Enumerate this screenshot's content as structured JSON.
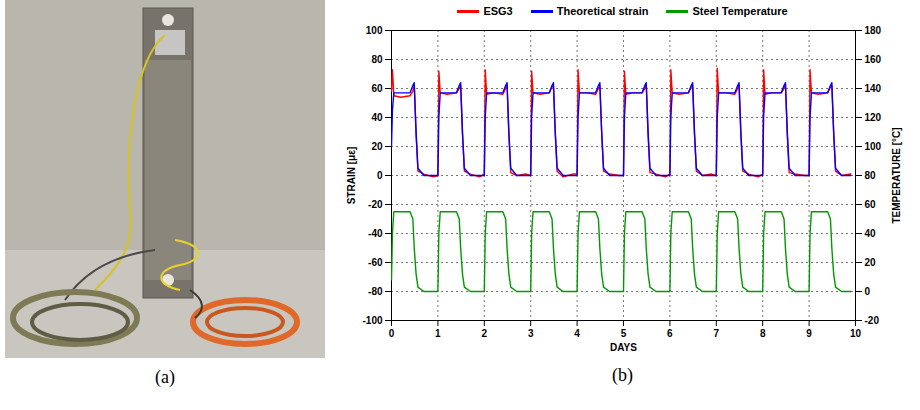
{
  "photo_panel": {
    "label": "(a)"
  },
  "chart_data": {
    "type": "line",
    "panel_label": "(b)",
    "x_label": "DAYS",
    "y_label": "STRAIN [με]",
    "y2_label": "TEMPERATURE [°C]",
    "xlim": [
      0,
      10
    ],
    "xticks": [
      0,
      1,
      2,
      3,
      4,
      5,
      6,
      7,
      8,
      9,
      10
    ],
    "ylim": [
      -100,
      100
    ],
    "yticks": [
      -100,
      -80,
      -60,
      -40,
      -20,
      0,
      20,
      40,
      60,
      80,
      100
    ],
    "y2lim": [
      -20,
      180
    ],
    "y2ticks": [
      -20,
      0,
      20,
      40,
      60,
      80,
      100,
      120,
      140,
      160,
      180
    ],
    "grid": true,
    "legend": "top",
    "x": [
      0,
      0.02,
      0.05,
      0.2,
      0.4,
      0.46,
      0.49,
      0.53,
      0.57,
      0.7,
      0.9,
      1,
      1.02,
      1.05,
      1.2,
      1.4,
      1.46,
      1.49,
      1.53,
      1.57,
      1.7,
      1.9,
      2,
      2.02,
      2.05,
      2.2,
      2.4,
      2.46,
      2.49,
      2.53,
      2.57,
      2.7,
      2.9,
      3,
      3.02,
      3.05,
      3.2,
      3.4,
      3.46,
      3.49,
      3.53,
      3.57,
      3.7,
      3.9,
      4,
      4.02,
      4.05,
      4.2,
      4.4,
      4.46,
      4.49,
      4.53,
      4.57,
      4.7,
      4.9,
      5,
      5.02,
      5.05,
      5.2,
      5.4,
      5.46,
      5.49,
      5.53,
      5.57,
      5.7,
      5.9,
      6,
      6.02,
      6.05,
      6.2,
      6.4,
      6.46,
      6.49,
      6.53,
      6.57,
      6.7,
      6.9,
      7,
      7.02,
      7.05,
      7.2,
      7.4,
      7.46,
      7.49,
      7.53,
      7.57,
      7.7,
      7.9,
      8,
      8.02,
      8.05,
      8.2,
      8.4,
      8.46,
      8.49,
      8.53,
      8.57,
      8.7,
      8.9,
      9,
      9.02,
      9.05,
      9.2,
      9.4,
      9.46,
      9.49,
      9.53,
      9.57,
      9.7,
      9.9
    ],
    "series": [
      {
        "name": "ESG3",
        "color": "#ff0000",
        "values": [
          58,
          73,
          55,
          54,
          55,
          58,
          62,
          28,
          3,
          1,
          -1,
          0,
          72,
          57,
          56,
          57,
          60,
          62,
          28,
          3,
          1,
          -1,
          1,
          73,
          56,
          57,
          56,
          60,
          63,
          27,
          2,
          0,
          1,
          0,
          72,
          57,
          56,
          57,
          61,
          62,
          28,
          3,
          -1,
          1,
          1,
          73,
          57,
          57,
          56,
          60,
          62,
          29,
          3,
          1,
          0,
          0,
          72,
          56,
          57,
          57,
          60,
          63,
          28,
          2,
          1,
          -1,
          1,
          73,
          57,
          56,
          57,
          61,
          62,
          28,
          3,
          0,
          1,
          0,
          74,
          57,
          57,
          56,
          60,
          62,
          27,
          3,
          1,
          -1,
          1,
          73,
          56,
          57,
          57,
          60,
          63,
          28,
          2,
          1,
          0,
          0,
          73,
          57,
          56,
          57,
          61,
          62,
          28,
          3,
          0,
          1
        ]
      },
      {
        "name": "Theoretical strain",
        "color": "#0000ff",
        "values": [
          20,
          45,
          57,
          57,
          57,
          62,
          64,
          30,
          5,
          0,
          0,
          0,
          40,
          57,
          57,
          57,
          62,
          64,
          30,
          5,
          0,
          0,
          0,
          40,
          57,
          57,
          57,
          62,
          64,
          30,
          5,
          0,
          0,
          0,
          40,
          57,
          57,
          57,
          62,
          64,
          30,
          5,
          0,
          0,
          0,
          40,
          57,
          57,
          57,
          62,
          64,
          30,
          5,
          0,
          0,
          0,
          40,
          57,
          57,
          57,
          62,
          64,
          30,
          5,
          0,
          0,
          0,
          40,
          57,
          57,
          57,
          62,
          64,
          30,
          5,
          0,
          0,
          0,
          40,
          57,
          57,
          57,
          62,
          64,
          30,
          5,
          0,
          0,
          0,
          40,
          57,
          57,
          57,
          62,
          64,
          30,
          5,
          0,
          0,
          0,
          40,
          57,
          57,
          57,
          62,
          64,
          30,
          5,
          0,
          0
        ]
      },
      {
        "name": "Steel Temperature",
        "color": "#009900",
        "axis": "y2",
        "values": [
          8,
          40,
          55,
          55,
          55,
          50,
          30,
          12,
          3,
          0,
          0,
          0,
          40,
          55,
          55,
          55,
          50,
          30,
          12,
          3,
          0,
          0,
          0,
          40,
          55,
          55,
          55,
          50,
          30,
          12,
          3,
          0,
          0,
          0,
          40,
          55,
          55,
          55,
          50,
          30,
          12,
          3,
          0,
          0,
          0,
          40,
          55,
          55,
          55,
          50,
          30,
          12,
          3,
          0,
          0,
          0,
          40,
          55,
          55,
          55,
          50,
          30,
          12,
          3,
          0,
          0,
          0,
          40,
          55,
          55,
          55,
          50,
          30,
          12,
          3,
          0,
          0,
          0,
          40,
          55,
          55,
          55,
          50,
          30,
          12,
          3,
          0,
          0,
          0,
          40,
          55,
          55,
          55,
          50,
          30,
          12,
          3,
          0,
          0,
          0,
          40,
          55,
          55,
          55,
          50,
          30,
          12,
          3,
          0,
          0
        ]
      }
    ]
  }
}
